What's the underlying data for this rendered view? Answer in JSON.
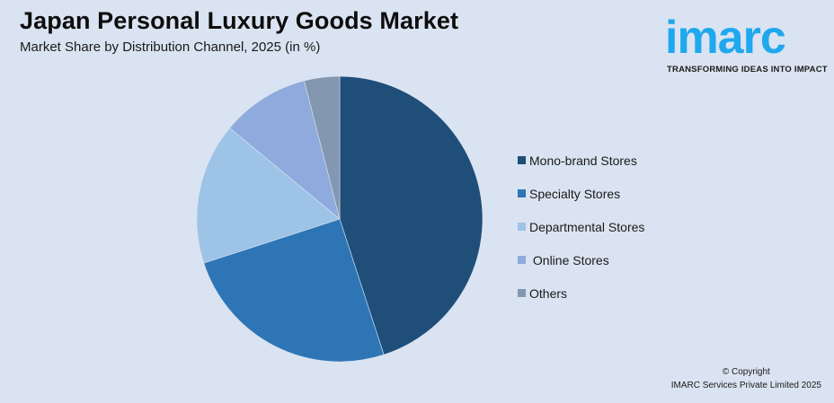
{
  "header": {
    "title": "Japan Personal Luxury Goods Market",
    "subtitle": "Market Share by Distribution Channel, 2025 (in %)"
  },
  "logo": {
    "wordmark": "imarc",
    "tagline": "TRANSFORMING IDEAS INTO IMPACT",
    "color": "#1fa8ee"
  },
  "footer": {
    "copyright_line1": "© Copyright",
    "copyright_line2": "IMARC Services Private Limited 2025"
  },
  "legend": {
    "items": [
      {
        "label": "Mono-brand Stores",
        "color": "#1f4e79"
      },
      {
        "label": "Specialty Stores",
        "color": "#2e75b6"
      },
      {
        "label": "Departmental Stores",
        "color": "#9dc3e6"
      },
      {
        "label": " Online Stores",
        "color": "#8faadc"
      },
      {
        "label": "Others",
        "color": "#8497b0"
      }
    ]
  },
  "chart_data": {
    "type": "pie",
    "title": "Japan Personal Luxury Goods Market",
    "subtitle": "Market Share by Distribution Channel, 2025 (in %)",
    "categories": [
      "Mono-brand Stores",
      "Specialty Stores",
      "Departmental Stores",
      "Online Stores",
      "Others"
    ],
    "values": [
      45,
      25,
      16,
      10,
      4
    ],
    "colors": [
      "#1f4e79",
      "#2e75b6",
      "#9dc3e6",
      "#8faadc",
      "#8497b0"
    ],
    "start_angle": "12 o'clock",
    "direction": "clockwise",
    "data_labels": false,
    "legend_position": "right",
    "center": [
      378,
      244
    ],
    "radius": 159
  }
}
